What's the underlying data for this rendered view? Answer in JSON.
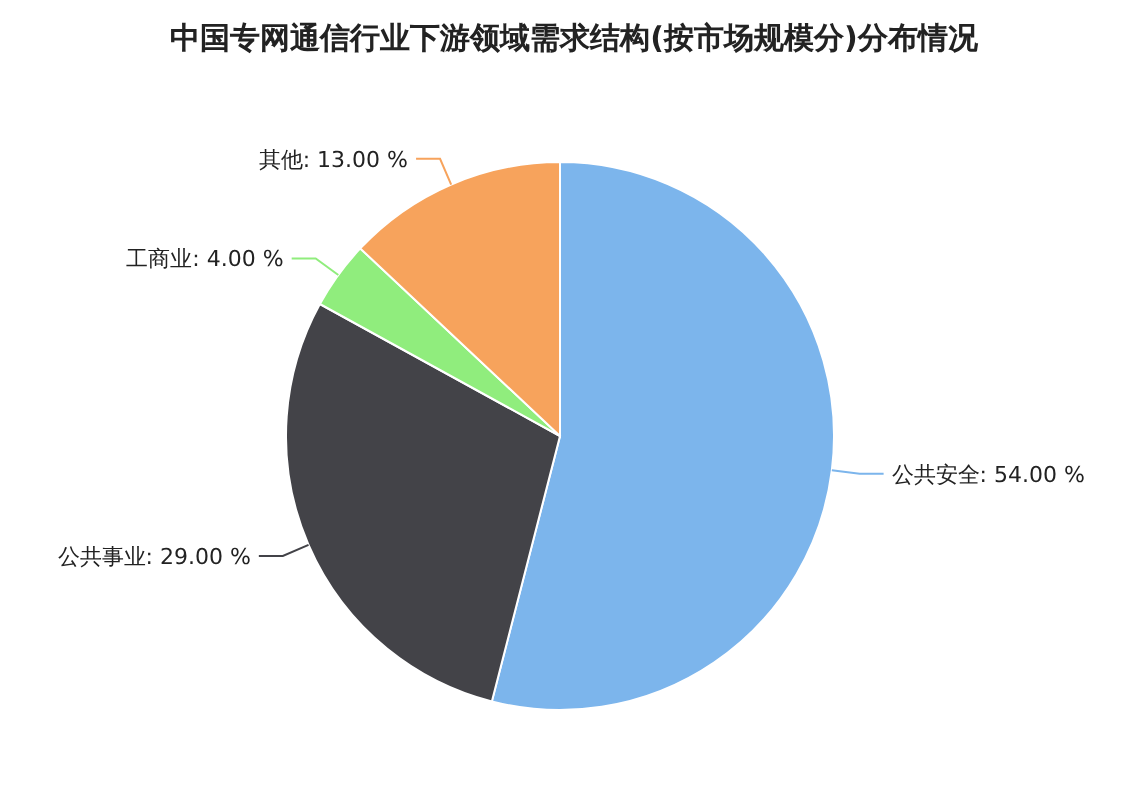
{
  "chart_data": {
    "type": "pie",
    "title": "中国专网通信行业下游领域需求结构(按市场规模分)分布情况",
    "categories": [
      "公共安全",
      "公共事业",
      "工商业",
      "其他"
    ],
    "values": [
      54,
      29,
      4,
      13
    ],
    "colors": [
      "#7cb5ec",
      "#434348",
      "#90ed7d",
      "#f7a35c"
    ],
    "value_labels": [
      "54.00 %",
      "29.00 %",
      "4.00 %",
      "13.00 %"
    ]
  }
}
